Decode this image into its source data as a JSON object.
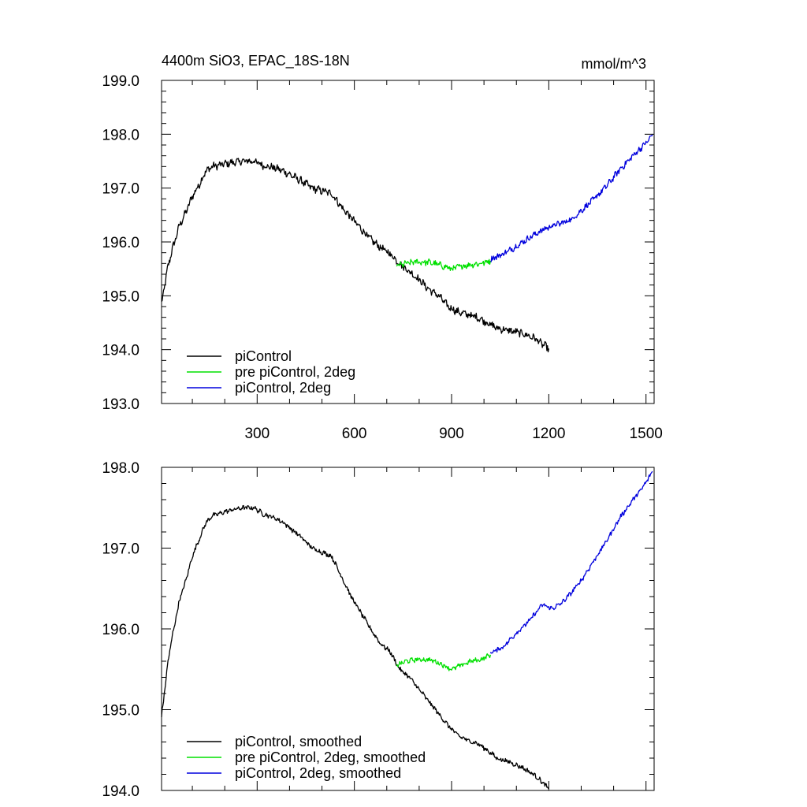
{
  "chart_data": [
    {
      "type": "line",
      "title": "4400m SiO3, EPAC_18S-18N",
      "units": "mmol/m^3",
      "xlabel": "",
      "ylabel": "",
      "xlim": [
        5,
        1525
      ],
      "ylim": [
        193.0,
        199.0
      ],
      "x_ticks": [
        300,
        600,
        900,
        1200,
        1500
      ],
      "y_ticks": [
        193.0,
        194.0,
        195.0,
        196.0,
        197.0,
        198.0,
        199.0
      ],
      "y_tick_labels": [
        "193.0",
        "194.0",
        "195.0",
        "196.0",
        "197.0",
        "198.0",
        "199.0"
      ],
      "legend_position": "bottom-left",
      "series": [
        {
          "name": "piControl",
          "color": "#000000",
          "noise": 0.06,
          "points": [
            [
              5,
              194.85
            ],
            [
              15,
              195.2
            ],
            [
              25,
              195.55
            ],
            [
              40,
              195.9
            ],
            [
              60,
              196.3
            ],
            [
              80,
              196.55
            ],
            [
              100,
              196.85
            ],
            [
              120,
              197.05
            ],
            [
              140,
              197.3
            ],
            [
              160,
              197.4
            ],
            [
              180,
              197.42
            ],
            [
              200,
              197.45
            ],
            [
              230,
              197.48
            ],
            [
              260,
              197.5
            ],
            [
              290,
              197.5
            ],
            [
              320,
              197.42
            ],
            [
              350,
              197.38
            ],
            [
              380,
              197.32
            ],
            [
              410,
              197.22
            ],
            [
              440,
              197.12
            ],
            [
              470,
              197.0
            ],
            [
              500,
              196.95
            ],
            [
              530,
              196.9
            ],
            [
              560,
              196.65
            ],
            [
              590,
              196.45
            ],
            [
              620,
              196.25
            ],
            [
              650,
              196.05
            ],
            [
              680,
              195.9
            ],
            [
              710,
              195.78
            ],
            [
              740,
              195.6
            ],
            [
              770,
              195.45
            ],
            [
              800,
              195.3
            ],
            [
              830,
              195.12
            ],
            [
              860,
              195.0
            ],
            [
              890,
              194.8
            ],
            [
              920,
              194.7
            ],
            [
              950,
              194.65
            ],
            [
              980,
              194.6
            ],
            [
              1010,
              194.5
            ],
            [
              1040,
              194.4
            ],
            [
              1080,
              194.35
            ],
            [
              1120,
              194.3
            ],
            [
              1160,
              194.2
            ],
            [
              1180,
              194.1
            ],
            [
              1200,
              194.02
            ]
          ]
        },
        {
          "name": "pre piControl, 2deg",
          "color": "#00e000",
          "noise": 0.05,
          "points": [
            [
              730,
              195.55
            ],
            [
              760,
              195.6
            ],
            [
              790,
              195.63
            ],
            [
              830,
              195.62
            ],
            [
              860,
              195.58
            ],
            [
              900,
              195.5
            ],
            [
              930,
              195.55
            ],
            [
              960,
              195.58
            ],
            [
              990,
              195.6
            ],
            [
              1020,
              195.65
            ]
          ]
        },
        {
          "name": "piControl, 2deg",
          "color": "#0000dd",
          "noise": 0.05,
          "points": [
            [
              1020,
              195.68
            ],
            [
              1060,
              195.78
            ],
            [
              1100,
              195.92
            ],
            [
              1140,
              196.08
            ],
            [
              1180,
              196.22
            ],
            [
              1210,
              196.3
            ],
            [
              1240,
              196.35
            ],
            [
              1270,
              196.42
            ],
            [
              1300,
              196.58
            ],
            [
              1340,
              196.8
            ],
            [
              1380,
              197.05
            ],
            [
              1420,
              197.35
            ],
            [
              1460,
              197.6
            ],
            [
              1490,
              197.78
            ],
            [
              1510,
              197.9
            ],
            [
              1520,
              198.0
            ]
          ]
        }
      ]
    },
    {
      "type": "line",
      "title": "",
      "xlabel": "",
      "ylabel": "",
      "xlim": [
        5,
        1525
      ],
      "ylim": [
        194.0,
        198.0
      ],
      "x_ticks": [
        300,
        600,
        900,
        1200,
        1500
      ],
      "y_ticks": [
        194.0,
        195.0,
        196.0,
        197.0,
        198.0
      ],
      "y_tick_labels": [
        "194.0",
        "195.0",
        "196.0",
        "197.0",
        "198.0"
      ],
      "legend_position": "bottom-left",
      "series": [
        {
          "name": "piControl, smoothed",
          "color": "#000000",
          "noise": 0.025,
          "points": [
            [
              5,
              194.92
            ],
            [
              15,
              195.25
            ],
            [
              25,
              195.6
            ],
            [
              40,
              195.95
            ],
            [
              60,
              196.35
            ],
            [
              80,
              196.6
            ],
            [
              100,
              196.9
            ],
            [
              120,
              197.1
            ],
            [
              140,
              197.3
            ],
            [
              160,
              197.4
            ],
            [
              180,
              197.42
            ],
            [
              200,
              197.45
            ],
            [
              230,
              197.48
            ],
            [
              260,
              197.5
            ],
            [
              290,
              197.5
            ],
            [
              320,
              197.42
            ],
            [
              350,
              197.38
            ],
            [
              380,
              197.32
            ],
            [
              410,
              197.22
            ],
            [
              440,
              197.12
            ],
            [
              470,
              197.0
            ],
            [
              500,
              196.95
            ],
            [
              530,
              196.9
            ],
            [
              560,
              196.65
            ],
            [
              590,
              196.4
            ],
            [
              620,
              196.2
            ],
            [
              650,
              196.0
            ],
            [
              680,
              195.82
            ],
            [
              710,
              195.72
            ],
            [
              740,
              195.5
            ],
            [
              770,
              195.4
            ],
            [
              800,
              195.25
            ],
            [
              830,
              195.1
            ],
            [
              860,
              194.95
            ],
            [
              890,
              194.8
            ],
            [
              920,
              194.68
            ],
            [
              950,
              194.62
            ],
            [
              980,
              194.58
            ],
            [
              1010,
              194.5
            ],
            [
              1040,
              194.4
            ],
            [
              1080,
              194.35
            ],
            [
              1120,
              194.28
            ],
            [
              1160,
              194.18
            ],
            [
              1180,
              194.1
            ],
            [
              1200,
              194.02
            ]
          ]
        },
        {
          "name": "pre piControl, 2deg, smoothed",
          "color": "#00e000",
          "noise": 0.025,
          "points": [
            [
              730,
              195.55
            ],
            [
              760,
              195.6
            ],
            [
              790,
              195.62
            ],
            [
              830,
              195.62
            ],
            [
              860,
              195.58
            ],
            [
              900,
              195.5
            ],
            [
              930,
              195.55
            ],
            [
              960,
              195.6
            ],
            [
              990,
              195.62
            ],
            [
              1020,
              195.68
            ]
          ]
        },
        {
          "name": "piControl, 2deg, smoothed",
          "color": "#0000dd",
          "noise": 0.025,
          "points": [
            [
              1020,
              195.7
            ],
            [
              1060,
              195.78
            ],
            [
              1100,
              195.95
            ],
            [
              1140,
              196.1
            ],
            [
              1180,
              196.3
            ],
            [
              1210,
              196.25
            ],
            [
              1240,
              196.32
            ],
            [
              1270,
              196.45
            ],
            [
              1300,
              196.6
            ],
            [
              1340,
              196.85
            ],
            [
              1380,
              197.1
            ],
            [
              1420,
              197.38
            ],
            [
              1460,
              197.6
            ],
            [
              1490,
              197.75
            ],
            [
              1510,
              197.88
            ],
            [
              1520,
              197.95
            ]
          ]
        }
      ]
    }
  ]
}
